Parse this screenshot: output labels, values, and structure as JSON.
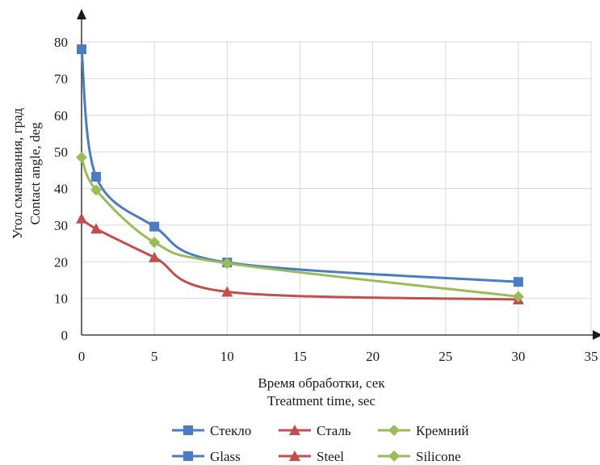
{
  "chart_data": {
    "type": "line",
    "smooth": true,
    "x": [
      0,
      1,
      5,
      10,
      30
    ],
    "series": [
      {
        "name": "Стекло",
        "name_alt": "Glass",
        "color": "#4a7cc4",
        "marker": "square",
        "values": [
          78,
          43.2,
          29.6,
          19.8,
          14.5
        ]
      },
      {
        "name": "Сталь",
        "name_alt": "Steel",
        "color": "#c0504d",
        "marker": "triangle",
        "values": [
          31.8,
          29,
          21.2,
          11.8,
          9.7
        ]
      },
      {
        "name": "Кремний",
        "name_alt": "Silicone",
        "color": "#9bbb59",
        "marker": "diamond",
        "values": [
          48.5,
          39.6,
          25.3,
          19.6,
          10.5
        ]
      }
    ],
    "xlim": [
      0,
      35
    ],
    "ylim": [
      0,
      80
    ],
    "xticks": [
      0,
      5,
      10,
      15,
      20,
      25,
      30,
      35
    ],
    "yticks": [
      0,
      10,
      20,
      30,
      40,
      50,
      60,
      70,
      80
    ],
    "xlabel": "Время обработки, сек",
    "xlabel_alt": "Treatment time, sec",
    "ylabel": "Угол смачивания, град",
    "ylabel_alt": "Contact angle, deg",
    "grid": true,
    "legend_position": "bottom"
  }
}
